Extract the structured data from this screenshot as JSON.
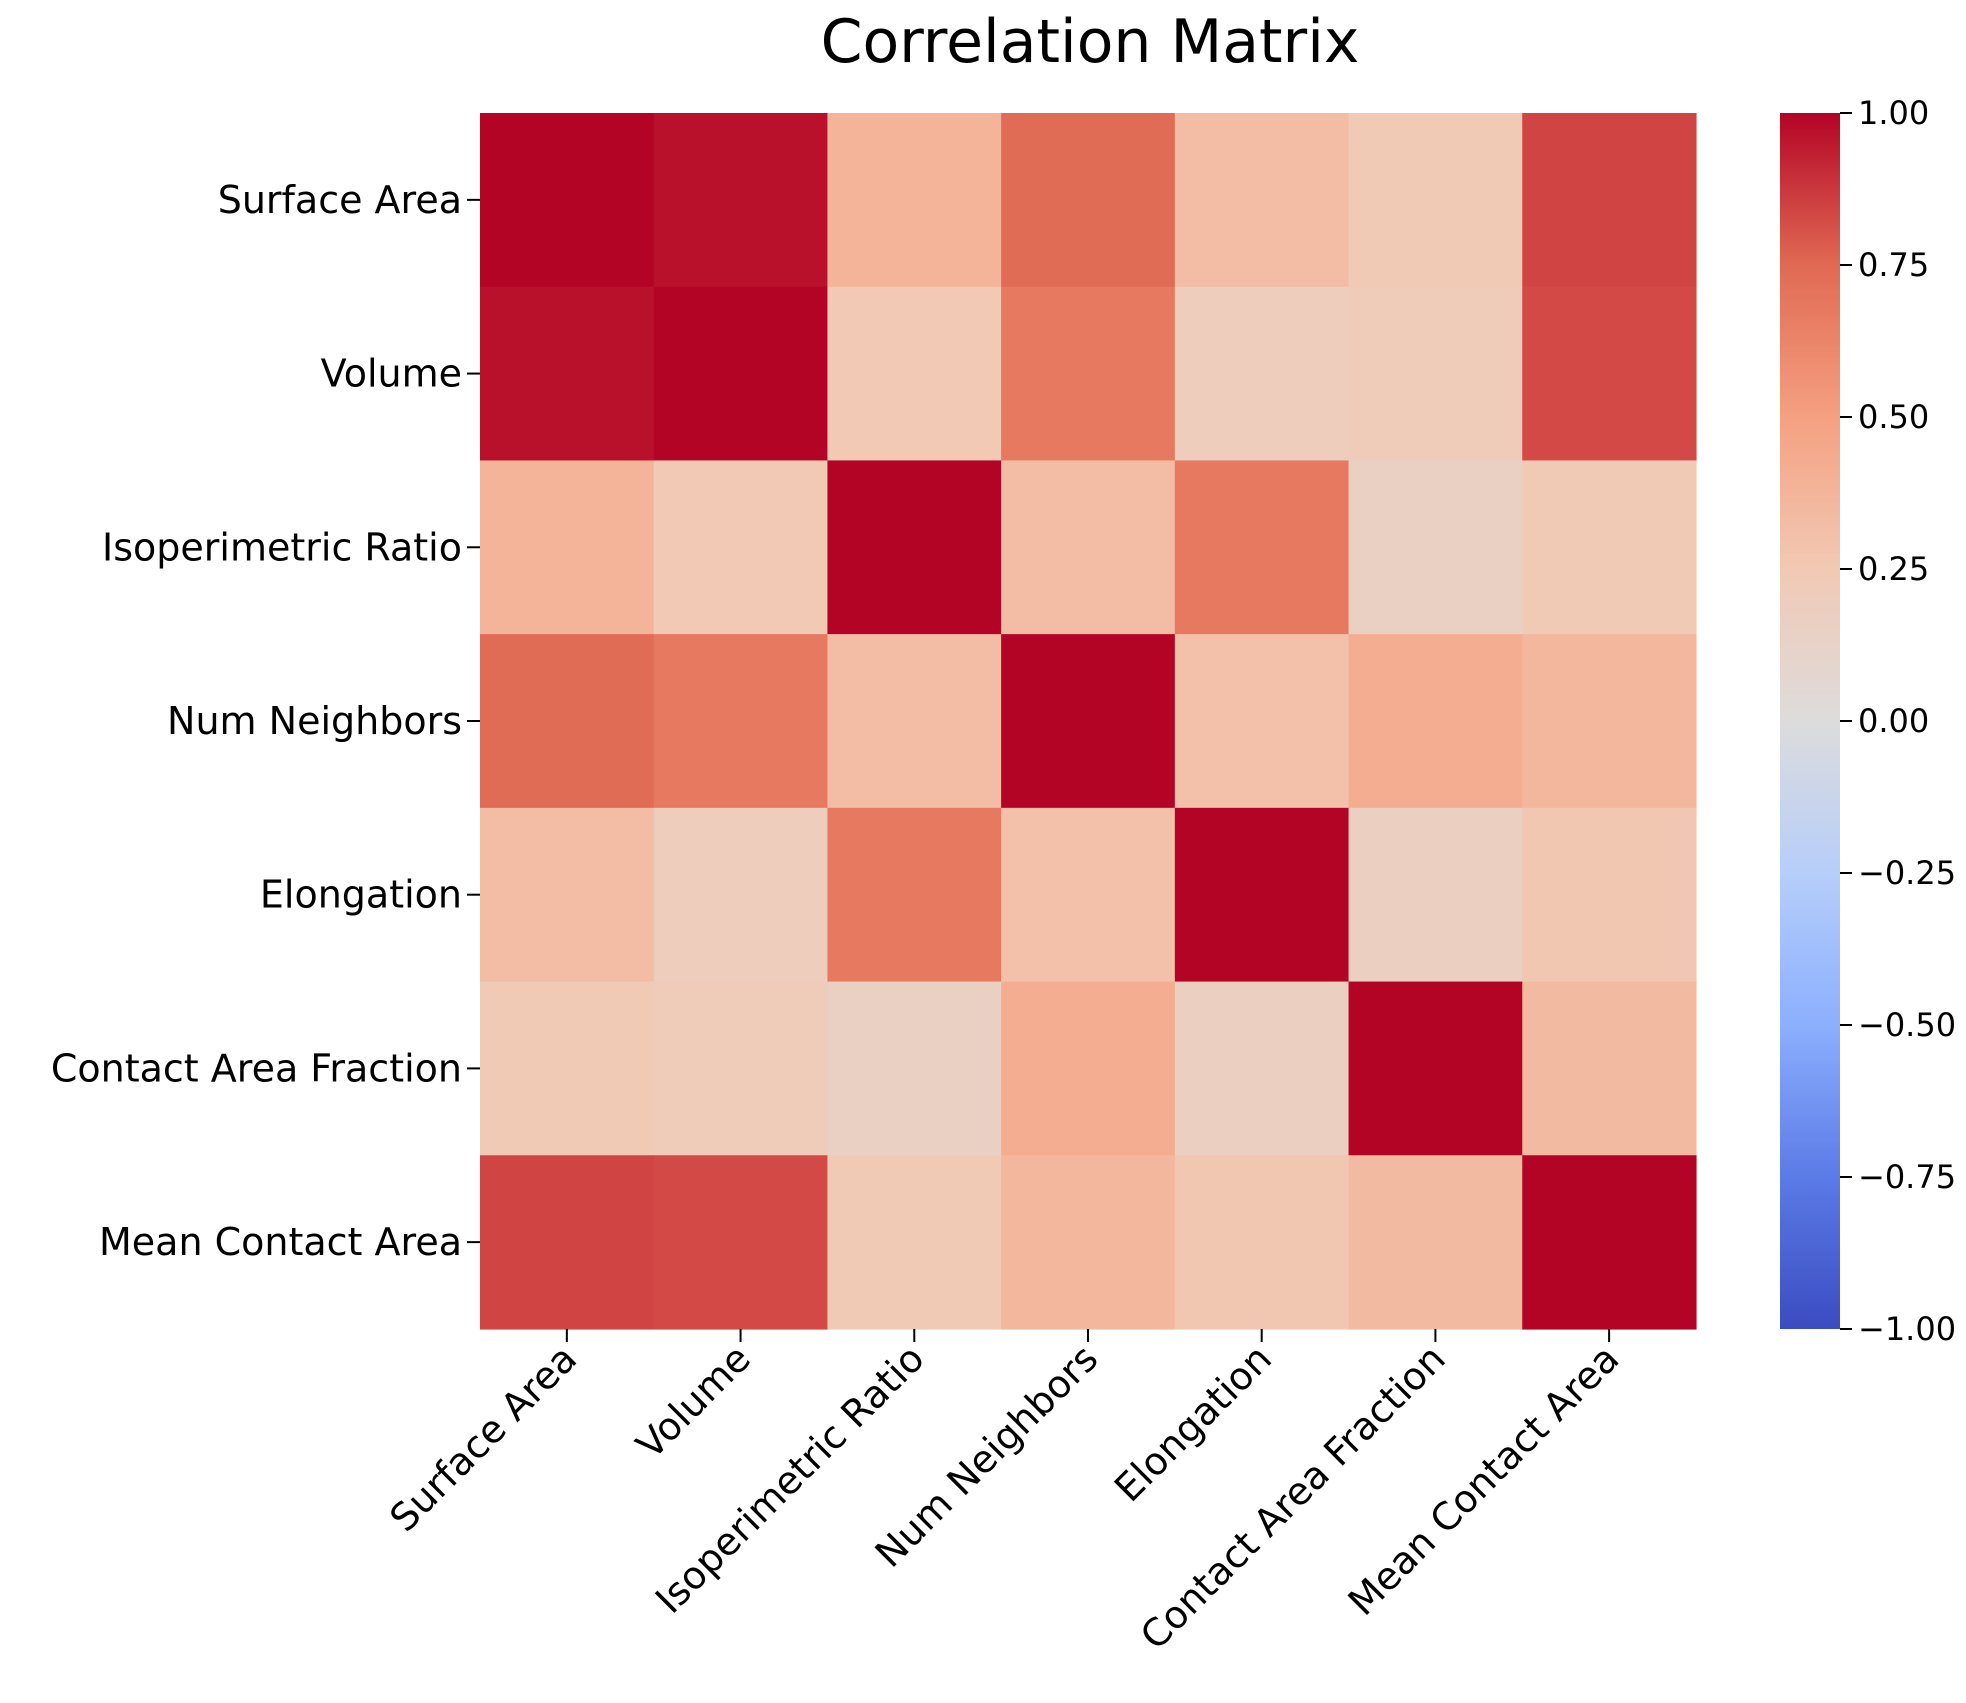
{
  "chart_data": {
    "type": "heatmap",
    "title": "Correlation Matrix",
    "xlabel": "",
    "ylabel": "",
    "rows": [
      "Surface Area",
      "Volume",
      "Isoperimetric Ratio",
      "Num Neighbors",
      "Elongation",
      "Contact Area Fraction",
      "Mean Contact Area"
    ],
    "columns": [
      "Surface Area",
      "Volume",
      "Isoperimetric Ratio",
      "Num Neighbors",
      "Elongation",
      "Contact Area Fraction",
      "Mean Contact Area"
    ],
    "values": [
      [
        1.0,
        0.97,
        0.38,
        0.74,
        0.33,
        0.24,
        0.84
      ],
      [
        0.97,
        1.0,
        0.25,
        0.68,
        0.2,
        0.22,
        0.83
      ],
      [
        0.38,
        0.25,
        1.0,
        0.33,
        0.68,
        0.16,
        0.24
      ],
      [
        0.74,
        0.68,
        0.33,
        1.0,
        0.3,
        0.42,
        0.36
      ],
      [
        0.33,
        0.2,
        0.68,
        0.3,
        1.0,
        0.17,
        0.26
      ],
      [
        0.24,
        0.22,
        0.16,
        0.42,
        0.17,
        1.0,
        0.34
      ],
      [
        0.84,
        0.83,
        0.24,
        0.36,
        0.26,
        0.34,
        1.0
      ]
    ],
    "colorbar": {
      "vmin": -1.0,
      "vmax": 1.0,
      "colormap": "coolwarm",
      "ticks": [
        "1.00",
        "0.75",
        "0.50",
        "0.25",
        "0.00",
        "−0.25",
        "−0.50",
        "−0.75",
        "−1.00"
      ],
      "tick_values": [
        1.0,
        0.75,
        0.5,
        0.25,
        0.0,
        -0.25,
        -0.5,
        -0.75,
        -1.0
      ]
    },
    "grid": false,
    "legend": "colorbar-right"
  }
}
